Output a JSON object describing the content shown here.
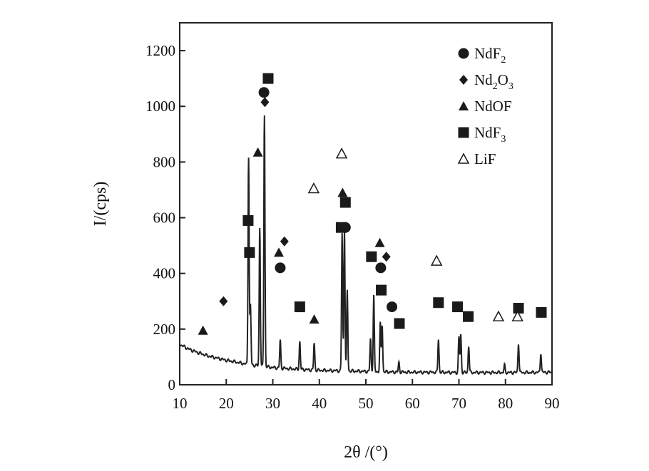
{
  "chart_data": {
    "type": "line",
    "title": "",
    "xlabel": "2θ /(°)",
    "ylabel": "I/(cps)",
    "xlim": [
      10,
      90
    ],
    "ylim": [
      0,
      1300
    ],
    "x_ticks": [
      10,
      20,
      30,
      40,
      50,
      60,
      70,
      80,
      90
    ],
    "y_ticks": [
      0,
      200,
      400,
      600,
      800,
      1000,
      1200
    ],
    "x_tick_labels": [
      "10",
      "20",
      "30",
      "40",
      "50",
      "60",
      "70",
      "80",
      "90"
    ],
    "y_tick_labels": [
      "0",
      "200",
      "400",
      "600",
      "800",
      "1000",
      "1200"
    ],
    "grid": false,
    "legend_position": "top-right",
    "colors": {
      "line": "#222222",
      "marker": "#1a1a1a",
      "background": "#ffffff"
    },
    "background_curve": {
      "x": [
        10,
        12,
        14,
        16,
        18,
        20,
        22,
        24,
        26,
        30,
        35,
        40,
        45,
        50,
        55,
        60,
        65,
        70,
        75,
        80,
        85,
        90
      ],
      "y": [
        145,
        128,
        115,
        104,
        96,
        88,
        82,
        75,
        70,
        62,
        56,
        52,
        50,
        48,
        46,
        45,
        45,
        44,
        44,
        44,
        44,
        45
      ]
    },
    "peaks": [
      {
        "x": 24.8,
        "y": 820
      },
      {
        "x": 25.2,
        "y": 285
      },
      {
        "x": 27.2,
        "y": 565
      },
      {
        "x": 28.2,
        "y": 970
      },
      {
        "x": 31.6,
        "y": 160
      },
      {
        "x": 35.8,
        "y": 155
      },
      {
        "x": 38.9,
        "y": 150
      },
      {
        "x": 44.9,
        "y": 545
      },
      {
        "x": 45.4,
        "y": 560
      },
      {
        "x": 46.0,
        "y": 340
      },
      {
        "x": 51.0,
        "y": 165
      },
      {
        "x": 51.7,
        "y": 320
      },
      {
        "x": 53.1,
        "y": 220
      },
      {
        "x": 53.5,
        "y": 215
      },
      {
        "x": 57.1,
        "y": 80
      },
      {
        "x": 65.6,
        "y": 165
      },
      {
        "x": 70.0,
        "y": 170
      },
      {
        "x": 70.4,
        "y": 180
      },
      {
        "x": 72.1,
        "y": 140
      },
      {
        "x": 79.8,
        "y": 70
      },
      {
        "x": 82.8,
        "y": 150
      },
      {
        "x": 87.6,
        "y": 115
      }
    ],
    "series": [
      {
        "name": "NdF2",
        "marker": "filled-circle",
        "x": [
          28.1,
          31.6,
          45.6,
          53.2,
          55.6
        ],
        "y": [
          1050,
          420,
          565,
          420,
          280
        ]
      },
      {
        "name": "Nd2O3",
        "marker": "filled-diamond",
        "x": [
          28.3,
          32.5,
          19.4,
          54.4
        ],
        "y": [
          1015,
          515,
          300,
          460
        ]
      },
      {
        "name": "NdOF",
        "marker": "filled-triangle",
        "x": [
          15.0,
          26.8,
          31.3,
          38.9,
          45.0,
          53.0
        ],
        "y": [
          195,
          835,
          475,
          235,
          690,
          510
        ]
      },
      {
        "name": "NdF3",
        "marker": "filled-square",
        "x": [
          24.7,
          25.0,
          29.0,
          35.8,
          44.7,
          45.6,
          51.2,
          53.3,
          57.2,
          65.6,
          69.7,
          72.0,
          82.8,
          87.7
        ],
        "y": [
          590,
          475,
          1100,
          280,
          565,
          655,
          460,
          340,
          220,
          295,
          280,
          245,
          275,
          260
        ]
      },
      {
        "name": "LiF",
        "marker": "open-triangle",
        "x": [
          38.8,
          44.8,
          65.2,
          78.5,
          82.6
        ],
        "y": [
          705,
          830,
          445,
          245,
          245
        ]
      }
    ],
    "legend": [
      {
        "marker": "filled-circle",
        "base": "NdF",
        "sub": "2",
        "after": ""
      },
      {
        "marker": "filled-diamond",
        "base": "Nd",
        "sub": "2",
        "mid": "O",
        "sub2": "3"
      },
      {
        "marker": "filled-triangle",
        "base": "NdOF",
        "sub": "",
        "after": ""
      },
      {
        "marker": "filled-square",
        "base": "NdF",
        "sub": "3",
        "after": ""
      },
      {
        "marker": "open-triangle",
        "base": "LiF",
        "sub": "",
        "after": ""
      }
    ]
  }
}
